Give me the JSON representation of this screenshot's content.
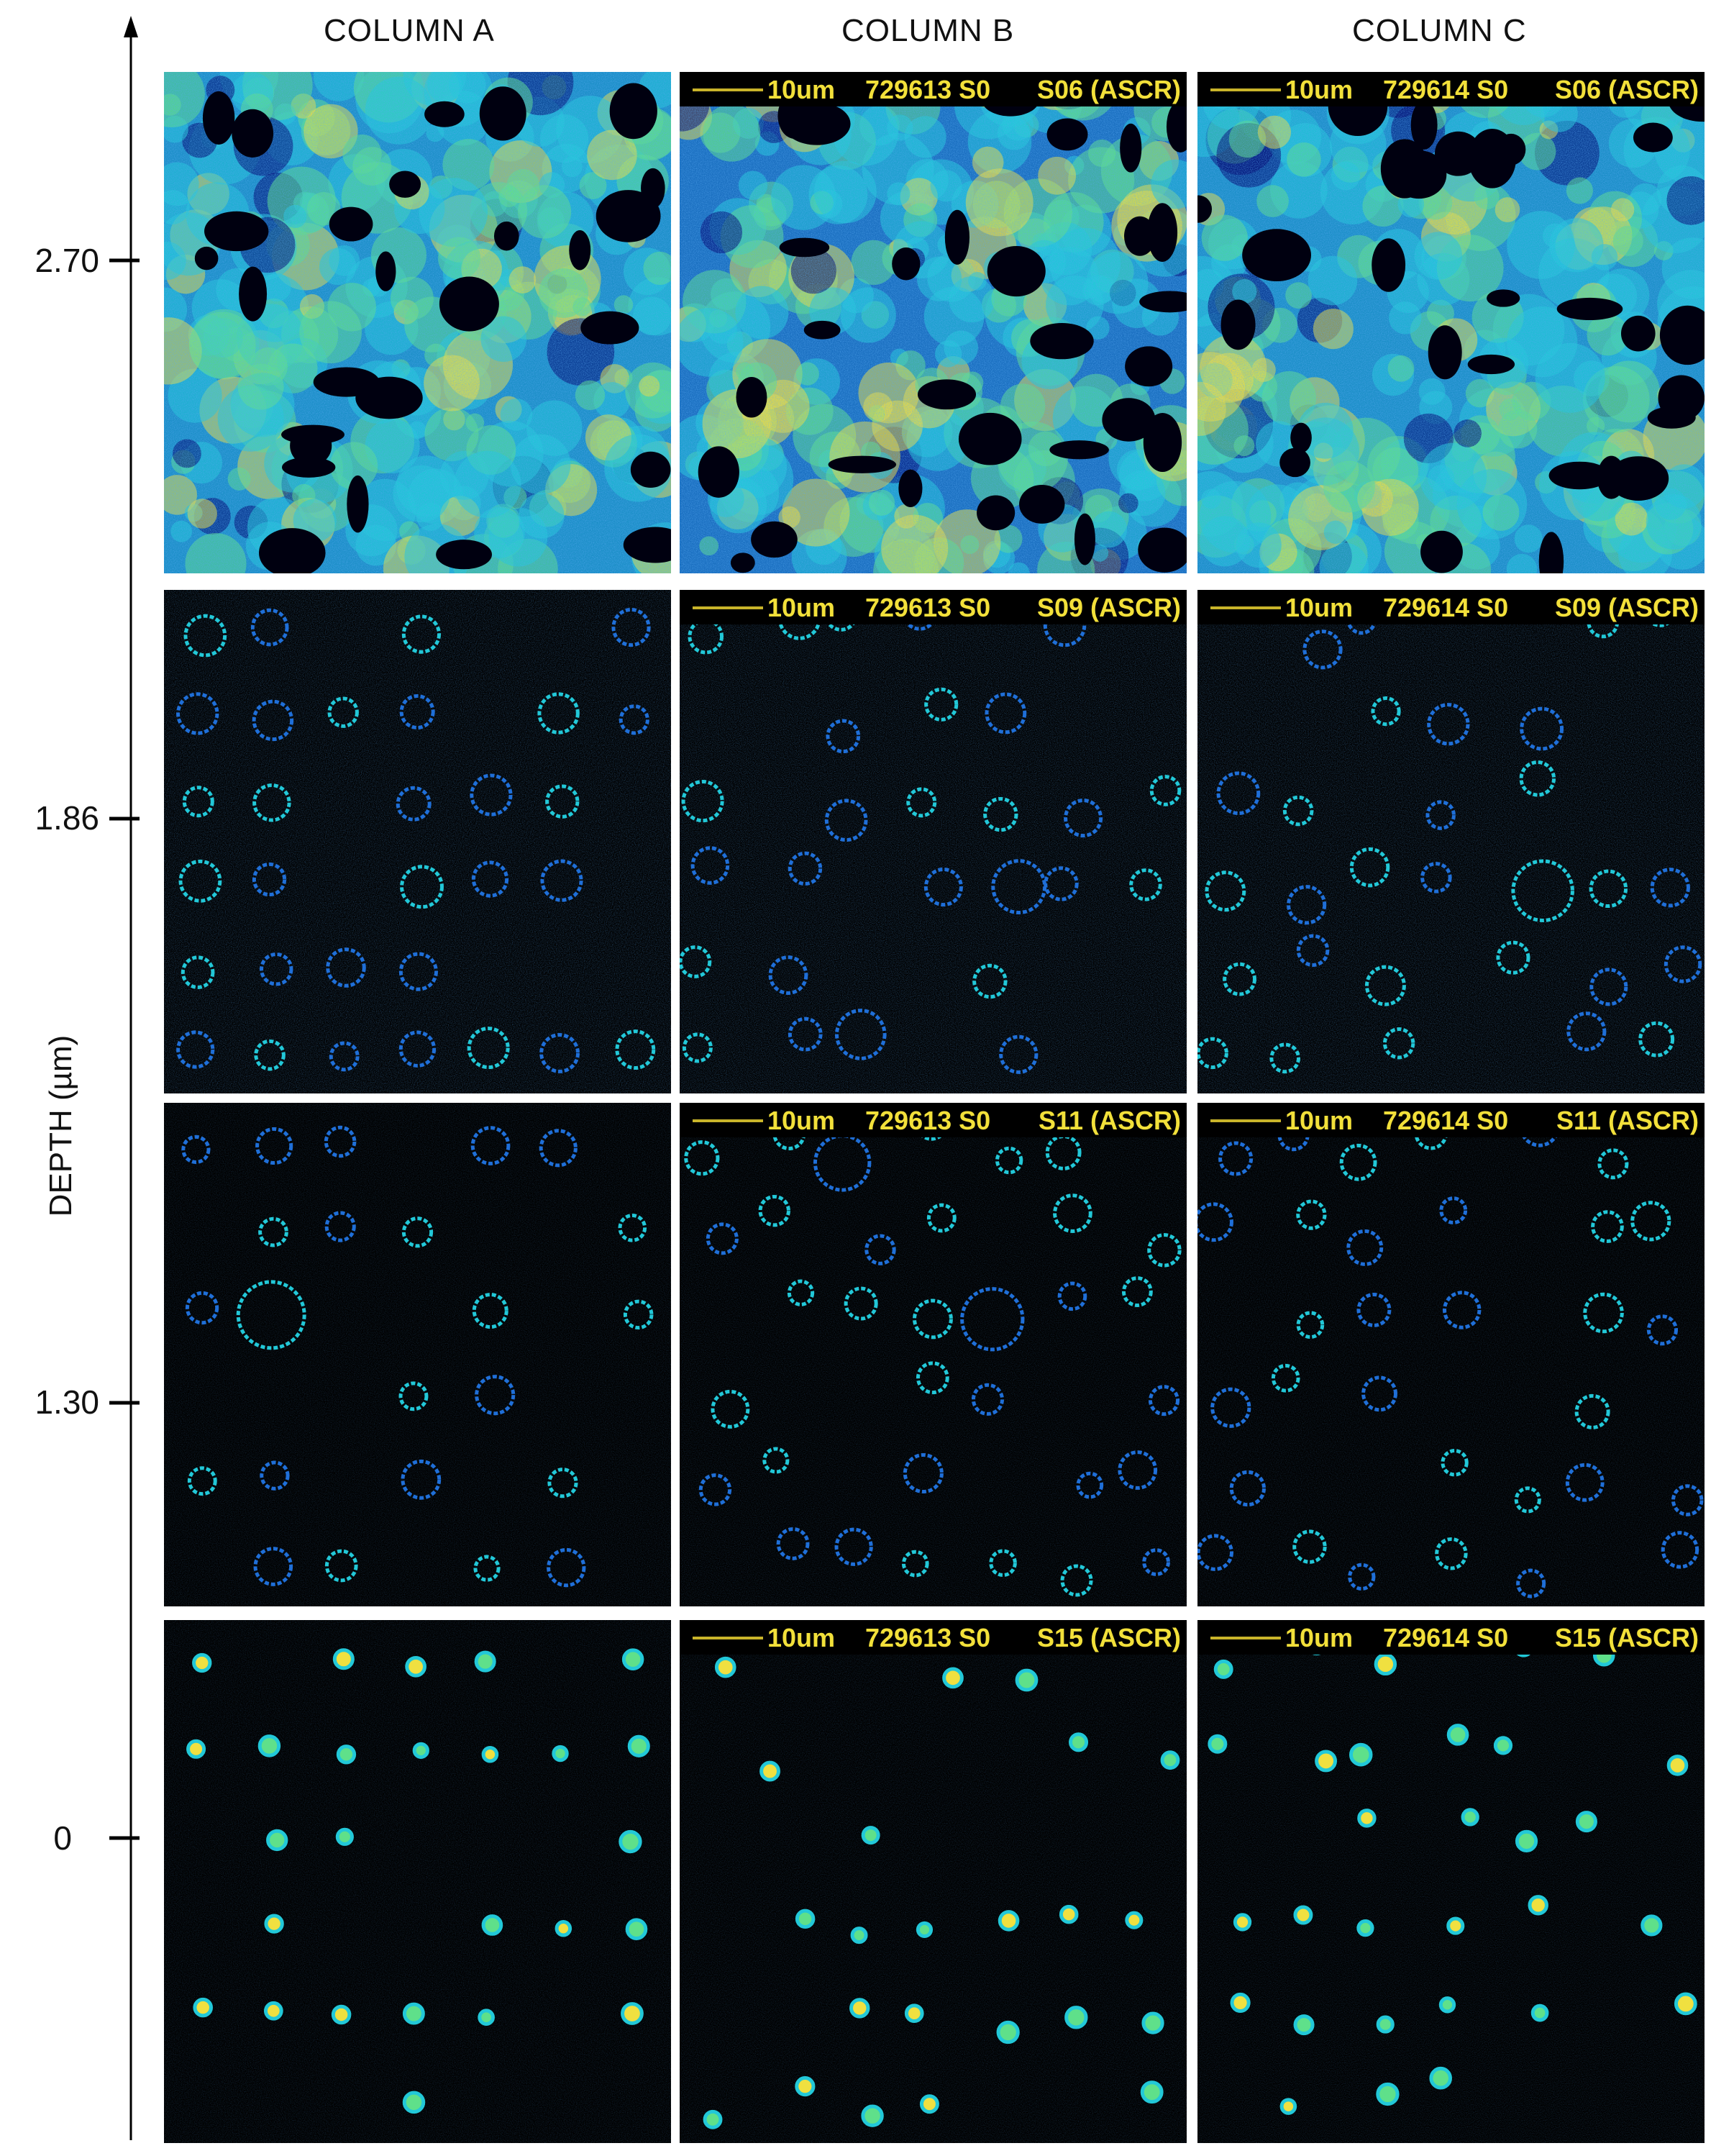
{
  "columns": [
    "COLUMN A",
    "COLUMN B",
    "COLUMN C"
  ],
  "depth_axis": {
    "title": "DEPTH (µm)",
    "ticks": [
      "2.70",
      "1.86",
      "1.30",
      "0"
    ]
  },
  "scale_bar": "10um",
  "rows": [
    {
      "slice": "S06 (ASCR)",
      "kind": "bulk",
      "panels": [
        {
          "sample_label": "",
          "slice_label": ""
        },
        {
          "sample_label": "729613 S0",
          "slice_label": "S06 (ASCR)"
        },
        {
          "sample_label": "729614 S0",
          "slice_label": "S06 (ASCR)"
        }
      ]
    },
    {
      "slice": "S09 (ASCR)",
      "kind": "rings-dense",
      "panels": [
        {
          "sample_label": "",
          "slice_label": ""
        },
        {
          "sample_label": "729613 S0",
          "slice_label": "S09 (ASCR)"
        },
        {
          "sample_label": "729614 S0",
          "slice_label": "S09 (ASCR)"
        }
      ]
    },
    {
      "slice": "S11 (ASCR)",
      "kind": "rings",
      "panels": [
        {
          "sample_label": "",
          "slice_label": ""
        },
        {
          "sample_label": "729613 S0",
          "slice_label": "S11 (ASCR)"
        },
        {
          "sample_label": "729614 S0",
          "slice_label": "S11 (ASCR)"
        }
      ]
    },
    {
      "slice": "S15 (ASCR)",
      "kind": "dots",
      "panels": [
        {
          "sample_label": "",
          "slice_label": ""
        },
        {
          "sample_label": "729613 S0",
          "slice_label": "S15 (ASCR)"
        },
        {
          "sample_label": "729614 S0",
          "slice_label": "S15 (ASCR)"
        }
      ]
    }
  ],
  "colormap": {
    "low": "#00006e",
    "mid_low": "#1f6fd8",
    "mid": "#22c8d8",
    "mid_high": "#5fe08a",
    "high": "#f0e040",
    "peak": "#e8502a"
  }
}
